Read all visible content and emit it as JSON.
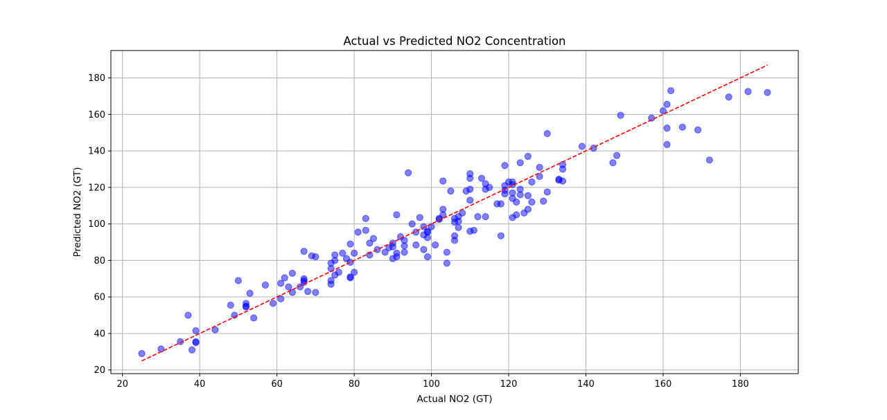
{
  "chart_data": {
    "type": "scatter",
    "title": "Actual vs Predicted NO2 Concentration",
    "xlabel": "Actual NO2 (GT)",
    "ylabel": "Predicted NO2 (GT)",
    "xlim": [
      17,
      195
    ],
    "ylim": [
      18,
      195
    ],
    "xticks": [
      20,
      40,
      60,
      80,
      100,
      120,
      140,
      160,
      180
    ],
    "yticks": [
      20,
      40,
      60,
      80,
      100,
      120,
      140,
      160,
      180
    ],
    "grid": true,
    "point_color": "#0000ff",
    "point_opacity": 0.5,
    "reference_line": {
      "x": [
        25,
        187
      ],
      "y": [
        25,
        187
      ],
      "color": "#ff0000",
      "style": "dashed"
    },
    "points": [
      [
        25,
        29
      ],
      [
        30,
        31.5
      ],
      [
        35,
        35.5
      ],
      [
        37,
        50
      ],
      [
        38,
        31
      ],
      [
        39,
        41.5
      ],
      [
        39,
        35
      ],
      [
        39,
        35.5
      ],
      [
        44,
        42
      ],
      [
        48,
        55.5
      ],
      [
        49,
        50
      ],
      [
        50,
        69
      ],
      [
        52,
        55
      ],
      [
        52,
        56.5
      ],
      [
        52,
        54.5
      ],
      [
        53,
        62
      ],
      [
        54,
        48.5
      ],
      [
        57,
        66.5
      ],
      [
        59,
        56.5
      ],
      [
        61,
        59
      ],
      [
        61,
        67.5
      ],
      [
        62,
        70.5
      ],
      [
        63,
        65.5
      ],
      [
        64,
        73
      ],
      [
        64,
        62.5
      ],
      [
        66,
        65.5
      ],
      [
        67,
        70
      ],
      [
        67,
        69
      ],
      [
        67,
        68
      ],
      [
        67,
        85
      ],
      [
        68,
        63
      ],
      [
        69,
        82.5
      ],
      [
        70,
        82
      ],
      [
        70,
        62.5
      ],
      [
        74,
        67
      ],
      [
        74,
        69
      ],
      [
        74,
        75.5
      ],
      [
        74,
        78.5
      ],
      [
        75,
        83
      ],
      [
        75,
        72
      ],
      [
        75,
        80
      ],
      [
        76,
        73.5
      ],
      [
        77,
        84
      ],
      [
        78,
        81
      ],
      [
        79,
        79
      ],
      [
        79,
        70.5
      ],
      [
        79,
        71
      ],
      [
        79,
        89
      ],
      [
        80,
        84
      ],
      [
        80,
        73.5
      ],
      [
        81,
        95.5
      ],
      [
        83,
        103
      ],
      [
        83,
        96.5
      ],
      [
        84,
        83
      ],
      [
        84,
        89.5
      ],
      [
        85,
        92
      ],
      [
        86,
        86
      ],
      [
        88,
        84.5
      ],
      [
        89,
        87
      ],
      [
        90,
        81
      ],
      [
        90,
        89.5
      ],
      [
        90,
        87.5
      ],
      [
        91,
        82
      ],
      [
        91,
        84
      ],
      [
        91,
        105
      ],
      [
        92,
        93
      ],
      [
        93,
        88
      ],
      [
        93,
        84.5
      ],
      [
        93,
        91
      ],
      [
        94,
        128
      ],
      [
        95,
        100
      ],
      [
        96,
        88.5
      ],
      [
        96,
        95.5
      ],
      [
        97,
        103.5
      ],
      [
        98,
        98.5
      ],
      [
        98,
        94
      ],
      [
        98,
        86
      ],
      [
        99,
        92.5
      ],
      [
        99,
        82
      ],
      [
        99,
        96
      ],
      [
        99,
        95.5
      ],
      [
        100,
        98.5
      ],
      [
        101,
        88.5
      ],
      [
        102,
        102.5
      ],
      [
        102,
        103
      ],
      [
        103,
        105
      ],
      [
        103,
        108
      ],
      [
        103,
        123.5
      ],
      [
        104,
        78.5
      ],
      [
        104,
        84.5
      ],
      [
        105,
        118
      ],
      [
        106,
        91
      ],
      [
        106,
        93.5
      ],
      [
        106,
        101
      ],
      [
        106,
        103
      ],
      [
        107,
        98
      ],
      [
        107,
        101.5
      ],
      [
        107,
        104
      ],
      [
        108,
        106
      ],
      [
        109,
        118
      ],
      [
        110,
        96
      ],
      [
        110,
        113
      ],
      [
        110,
        119
      ],
      [
        110,
        125
      ],
      [
        110,
        127.5
      ],
      [
        111,
        96.5
      ],
      [
        112,
        104
      ],
      [
        113,
        125
      ],
      [
        114,
        104
      ],
      [
        114,
        119
      ],
      [
        114,
        122
      ],
      [
        115,
        120
      ],
      [
        117,
        111
      ],
      [
        118,
        111
      ],
      [
        118,
        93.5
      ],
      [
        119,
        116.5
      ],
      [
        119,
        118.5
      ],
      [
        119,
        121
      ],
      [
        119,
        132
      ],
      [
        120,
        123
      ],
      [
        121,
        103.5
      ],
      [
        121,
        114
      ],
      [
        121,
        117
      ],
      [
        121,
        121.5
      ],
      [
        121,
        123
      ],
      [
        122,
        105
      ],
      [
        122,
        112
      ],
      [
        123,
        116
      ],
      [
        123,
        119
      ],
      [
        123,
        133.5
      ],
      [
        124,
        106
      ],
      [
        125,
        108
      ],
      [
        125,
        115.5
      ],
      [
        125,
        137
      ],
      [
        126,
        112
      ],
      [
        126,
        123
      ],
      [
        128,
        126
      ],
      [
        128,
        131
      ],
      [
        129,
        112.5
      ],
      [
        130,
        117.5
      ],
      [
        130,
        149.5
      ],
      [
        133,
        124
      ],
      [
        133,
        124.5
      ],
      [
        134,
        123.5
      ],
      [
        134,
        130
      ],
      [
        134,
        132.5
      ],
      [
        139,
        142.5
      ],
      [
        142,
        141.5
      ],
      [
        147,
        133.5
      ],
      [
        148,
        137.5
      ],
      [
        149,
        159.5
      ],
      [
        157,
        158
      ],
      [
        160,
        162
      ],
      [
        161,
        143.5
      ],
      [
        161,
        152.5
      ],
      [
        161,
        165.5
      ],
      [
        162,
        173
      ],
      [
        165,
        153
      ],
      [
        169,
        151.5
      ],
      [
        172,
        135
      ],
      [
        177,
        169.5
      ],
      [
        182,
        172.5
      ],
      [
        187,
        172
      ]
    ]
  }
}
